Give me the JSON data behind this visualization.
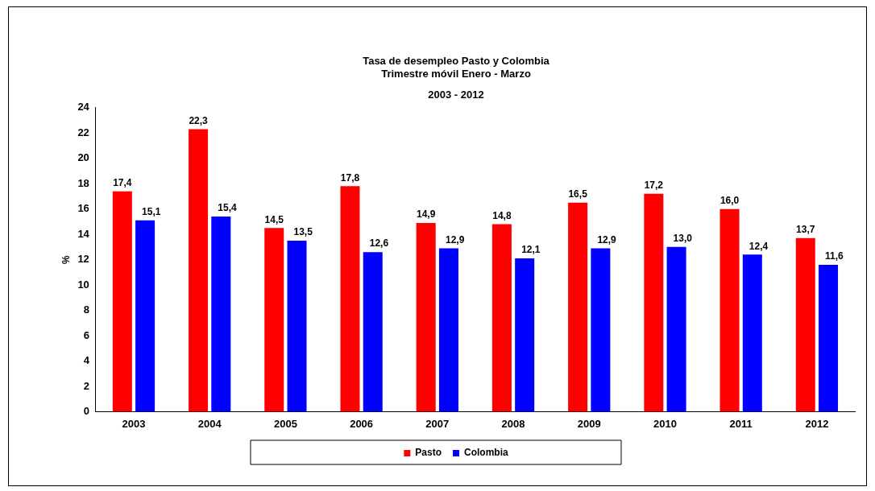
{
  "chart_data": {
    "type": "bar",
    "title": "Tasa de desempleo Pasto y Colombia\nTrimestre móvil Enero - Marzo",
    "subtitle": "2003 - 2012",
    "ylabel": "%",
    "categories": [
      "2003",
      "2004",
      "2005",
      "2006",
      "2007",
      "2008",
      "2009",
      "2010",
      "2011",
      "2012"
    ],
    "series": [
      {
        "name": "Pasto",
        "color": "#ff0000",
        "values": [
          17.4,
          22.3,
          14.5,
          17.8,
          14.9,
          14.8,
          16.5,
          17.2,
          16.0,
          13.7
        ],
        "value_labels": [
          "17,4",
          "22,3",
          "14,5",
          "17,8",
          "14,9",
          "14,8",
          "16,5",
          "17,2",
          "16,0",
          "13,7"
        ]
      },
      {
        "name": "Colombia",
        "color": "#0000ff",
        "values": [
          15.1,
          15.4,
          13.5,
          12.6,
          12.9,
          12.1,
          12.9,
          13.0,
          12.4,
          11.6
        ],
        "value_labels": [
          "15,1",
          "15,4",
          "13,5",
          "12,6",
          "12,9",
          "12,1",
          "12,9",
          "13,0",
          "12,4",
          "11,6"
        ]
      }
    ],
    "ylim": [
      0,
      24
    ],
    "yticks": [
      0,
      2,
      4,
      6,
      8,
      10,
      12,
      14,
      16,
      18,
      20,
      22,
      24
    ],
    "grid": false,
    "legend": "bottom"
  }
}
